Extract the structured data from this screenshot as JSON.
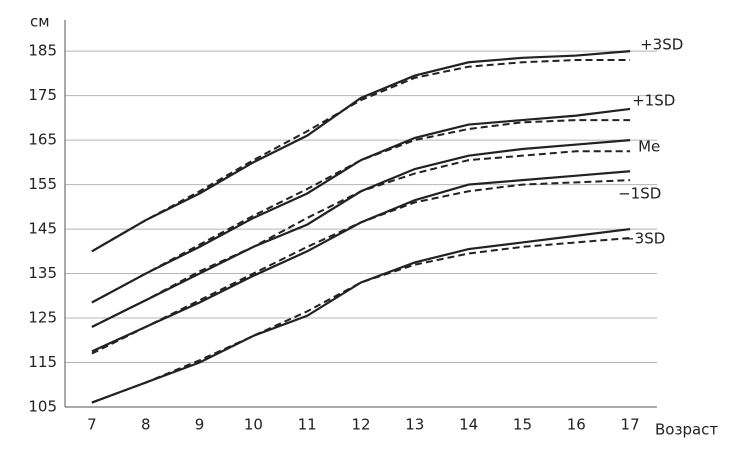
{
  "chart_data": {
    "type": "line",
    "y_label": "см",
    "x_label": "Возраст",
    "x": [
      7,
      8,
      9,
      10,
      11,
      12,
      13,
      14,
      15,
      16,
      17
    ],
    "xlim": [
      6.5,
      17.5
    ],
    "ylim": [
      105,
      192
    ],
    "yticks": [
      105,
      115,
      125,
      135,
      145,
      155,
      165,
      175,
      185
    ],
    "grid": true,
    "series": [
      {
        "name": "+3SD",
        "color": "#222222",
        "values": [
          140,
          147,
          153,
          160,
          166,
          174.5,
          179.5,
          182.5,
          183.5,
          184,
          185
        ],
        "dashed_values": [
          140,
          147,
          153.5,
          160.5,
          167,
          174,
          179,
          181.5,
          182.5,
          183,
          183
        ]
      },
      {
        "name": "+1SD",
        "color": "#222222",
        "values": [
          128.5,
          135,
          141,
          147.5,
          153,
          160.5,
          165.5,
          168.5,
          169.5,
          170.5,
          172
        ],
        "dashed_values": [
          128.5,
          135,
          141.5,
          148,
          154,
          160.5,
          165,
          167.5,
          169,
          169.5,
          169.5
        ]
      },
      {
        "name": "Me",
        "color": "#222222",
        "values": [
          123,
          129,
          135,
          141,
          146,
          153.5,
          158.5,
          161.5,
          163,
          164,
          165
        ],
        "dashed_values": [
          123,
          129,
          135.5,
          141,
          147.5,
          153.5,
          157.5,
          160.5,
          161.5,
          162.5,
          162.5
        ]
      },
      {
        "name": "−1SD",
        "color": "#222222",
        "values": [
          117.5,
          123,
          128.5,
          134.5,
          140,
          146.5,
          151.5,
          155,
          156,
          157,
          158
        ],
        "dashed_values": [
          117,
          123,
          129,
          135,
          141,
          146.5,
          151,
          153.5,
          155,
          155.5,
          156
        ]
      },
      {
        "name": "−3SD",
        "color": "#222222",
        "values": [
          106,
          110.5,
          115,
          121,
          125.5,
          133,
          137.5,
          140.5,
          142,
          143.5,
          145
        ],
        "dashed_values": [
          106,
          110.5,
          115.5,
          121,
          126.5,
          133,
          137,
          139.5,
          141,
          142,
          143
        ]
      }
    ]
  }
}
